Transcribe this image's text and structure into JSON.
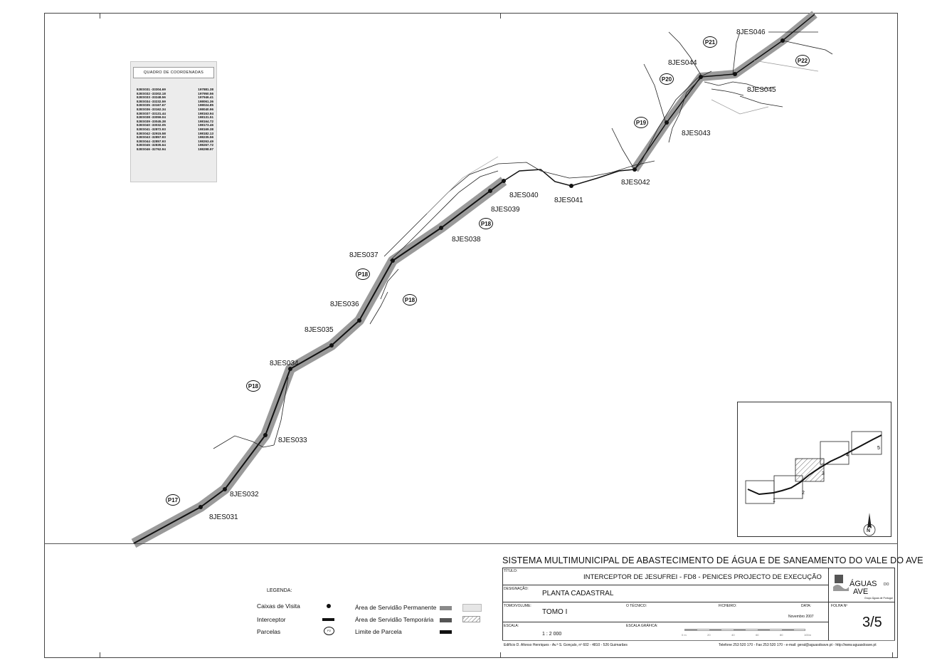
{
  "coordinates_table": {
    "title": "QUADRO DE COORDENADAS",
    "rows": [
      [
        "8JES031 -33304.69",
        "197881.38"
      ],
      [
        "8JES032 -33302.18",
        "197950.56"
      ],
      [
        "8JES033 -33248.56",
        "197946.41"
      ],
      [
        "8JES034 -33232.59",
        "198061.36"
      ],
      [
        "8JES035 -33167.67",
        "198024.85"
      ],
      [
        "8JES036 -33162.34",
        "198040.96"
      ],
      [
        "8JES037 -33131.44",
        "198163.94"
      ],
      [
        "8JES038 -33059.04",
        "198131.51"
      ],
      [
        "8JES039 -33045.38",
        "198164.72"
      ],
      [
        "8JES040 -33032.05",
        "198173.46"
      ],
      [
        "8JES041 -32872.93",
        "198169.38"
      ],
      [
        "8JES042 -32915.58",
        "198182.13"
      ],
      [
        "8JES043 -32857.93",
        "198235.56"
      ],
      [
        "8JES044 -32857.93",
        "198263.49"
      ],
      [
        "8JES045 -32835.64",
        "198267.72"
      ],
      [
        "8JES046 -32762.94",
        "198298.97"
      ]
    ]
  },
  "manholes": [
    "8JES031",
    "8JES032",
    "8JES033",
    "8JES034",
    "8JES035",
    "8JES036",
    "8JES037",
    "8JES038",
    "8JES039",
    "8JES040",
    "8JES041",
    "8JES042",
    "8JES043",
    "8JES044",
    "8JES045",
    "8JES046"
  ],
  "parcels": [
    "P17",
    "P18",
    "P18",
    "P18",
    "P18",
    "P19",
    "P20",
    "P21",
    "P22"
  ],
  "inset_sheets": [
    "1",
    "2",
    "3",
    "4",
    "5"
  ],
  "north_label": "N",
  "legend": {
    "title": "LEGENDA:",
    "items": [
      "Caixas de Visita",
      "Interceptor",
      "Parcelas",
      "Área de Servidão Permanente",
      "Área de Servidão Temporária",
      "Limite de Parcela"
    ],
    "parcel_symbol": "P2"
  },
  "title_block": {
    "system": "SISTEMA MULTIMUNICIPAL DE ABASTECIMENTO DE ÁGUA E DE SANEAMENTO DO VALE DO AVE",
    "titulo_label": "TÍTULO:",
    "titulo": "INTERCEPTOR DE JESUFREI - FD8 - PENICES  PROJECTO DE EXECUÇÃO",
    "designacao_label": "DESIGNAÇÃO:",
    "designacao": "PLANTA CADASTRAL",
    "tomo_label": "TOMO/VOLUME:",
    "tomo": "TOMO I",
    "tecnico_label": "O TÉCNICO:",
    "ficheiro_label": "FICHEIRO:",
    "data_label": "DATA:",
    "data": "Novembro 2007",
    "folha_label": "FOLHA Nº",
    "folha": "3/5",
    "escala_label": "ESCALA:",
    "escala": "1 : 2 000",
    "escala_grafica_label": "ESCALA GRÁFICA:",
    "scale_ticks": [
      "0 m",
      "20",
      "40",
      "60",
      "80",
      "100m"
    ],
    "logo_main": "ÁGUAS",
    "logo_small": "DO",
    "logo_sub": "AVE",
    "logo_tag": "Grupo Águas de Portugal",
    "footer_left": "Edifício D. Afonso Henriques - Av.ª S. Gonçalo, nº 602 - 4810 - 526 Guimarães",
    "footer_right": "Telefone 253 520 170 - Fax 253 520 170  -  e-mail: geral@aguasdoave.pt  -  http://www.aguasdoave.pt"
  }
}
